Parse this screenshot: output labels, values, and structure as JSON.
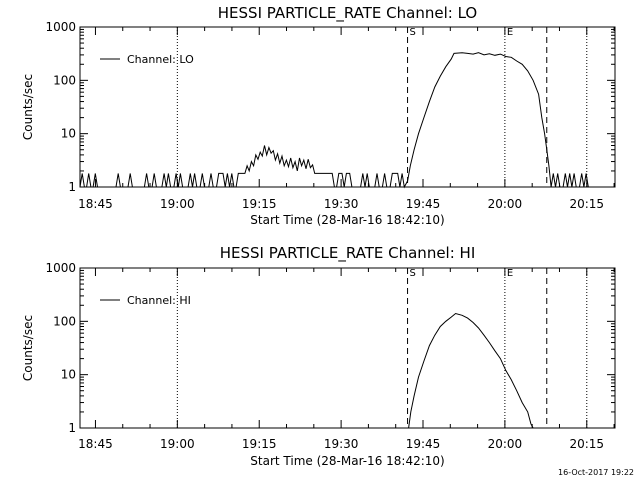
{
  "footer": {
    "date_stamp": "16-Oct-2017 19:22"
  },
  "chart_data": [
    {
      "type": "line",
      "title": "HESSI PARTICLE_RATE Channel: LO",
      "xlabel": "Start Time (28-Mar-16 18:42:10)",
      "ylabel": "Counts/sec",
      "x_unit": "minutes since 18:42:10",
      "xlim": [
        0,
        98
      ],
      "ylim": [
        1,
        1000
      ],
      "y_scale": "log",
      "x_ticks": [
        {
          "v": 2.83,
          "label": "18:45"
        },
        {
          "v": 17.83,
          "label": "19:00"
        },
        {
          "v": 32.83,
          "label": "19:15"
        },
        {
          "v": 47.83,
          "label": "19:30"
        },
        {
          "v": 62.83,
          "label": "19:45"
        },
        {
          "v": 77.83,
          "label": "20:00"
        },
        {
          "v": 92.83,
          "label": "20:15"
        }
      ],
      "y_ticks": [
        {
          "v": 1,
          "label": "1"
        },
        {
          "v": 10,
          "label": "10"
        },
        {
          "v": 100,
          "label": "100"
        },
        {
          "v": 1000,
          "label": "1000"
        }
      ],
      "markers": [
        {
          "x": 60.0,
          "style": "dashed",
          "label": "S"
        },
        {
          "x": 77.83,
          "style": "dotted",
          "label": "E"
        },
        {
          "x": 17.83,
          "style": "dotted",
          "label": ""
        },
        {
          "x": 92.83,
          "style": "dotted",
          "label": ""
        },
        {
          "x": 85.5,
          "style": "dashed",
          "label": ""
        }
      ],
      "legend": {
        "position": "top-left",
        "entries": [
          "Channel: LO"
        ]
      },
      "series": [
        {
          "name": "Channel: LO",
          "points": [
            [
              0,
              1
            ],
            [
              0.4,
              1.8
            ],
            [
              0.8,
              1
            ],
            [
              1.2,
              1
            ],
            [
              1.6,
              1.8
            ],
            [
              2,
              1
            ],
            [
              2.4,
              1
            ],
            [
              2.8,
              1.8
            ],
            [
              3.2,
              1
            ],
            [
              4,
              1
            ],
            [
              4.4,
              1
            ],
            [
              6.6,
              1
            ],
            [
              7,
              1.8
            ],
            [
              7.4,
              1
            ],
            [
              8.8,
              1
            ],
            [
              9.2,
              1.8
            ],
            [
              9.6,
              1
            ],
            [
              11.8,
              1
            ],
            [
              12.2,
              1.8
            ],
            [
              12.6,
              1
            ],
            [
              13.2,
              1
            ],
            [
              13.6,
              1.8
            ],
            [
              14,
              1
            ],
            [
              15,
              1
            ],
            [
              15.4,
              1.8
            ],
            [
              15.8,
              1
            ],
            [
              16.2,
              1.8
            ],
            [
              16.6,
              1
            ],
            [
              17.2,
              1
            ],
            [
              17.6,
              1.8
            ],
            [
              18,
              1
            ],
            [
              18.4,
              1.8
            ],
            [
              18.8,
              1
            ],
            [
              19.8,
              1
            ],
            [
              20.2,
              1.8
            ],
            [
              20.6,
              1
            ],
            [
              21,
              1.8
            ],
            [
              21.4,
              1
            ],
            [
              22,
              1
            ],
            [
              22.4,
              1.8
            ],
            [
              22.8,
              1
            ],
            [
              23.6,
              1
            ],
            [
              24,
              1.8
            ],
            [
              24.4,
              1
            ],
            [
              25,
              1
            ],
            [
              25.4,
              1.8
            ],
            [
              25.8,
              1.8
            ],
            [
              26.2,
              1.8
            ],
            [
              26.6,
              1
            ],
            [
              27,
              1.8
            ],
            [
              27.4,
              1
            ],
            [
              27.8,
              1.8
            ],
            [
              28.2,
              1
            ],
            [
              28.6,
              1
            ],
            [
              29,
              1.8
            ],
            [
              30.2,
              1.8
            ],
            [
              30.6,
              2.5
            ],
            [
              31,
              2
            ],
            [
              31.4,
              3
            ],
            [
              31.8,
              2.5
            ],
            [
              32.2,
              4
            ],
            [
              32.6,
              3.3
            ],
            [
              33,
              4.5
            ],
            [
              33.4,
              3.8
            ],
            [
              33.8,
              6
            ],
            [
              34.2,
              4
            ],
            [
              34.6,
              5.5
            ],
            [
              35,
              4.3
            ],
            [
              35.4,
              4.8
            ],
            [
              35.8,
              3.2
            ],
            [
              36.2,
              4.2
            ],
            [
              36.6,
              2.8
            ],
            [
              37,
              3.8
            ],
            [
              37.4,
              2.5
            ],
            [
              37.8,
              3.2
            ],
            [
              38.2,
              2.4
            ],
            [
              38.6,
              3.5
            ],
            [
              39,
              2.3
            ],
            [
              39.4,
              3
            ],
            [
              39.8,
              2
            ],
            [
              40.2,
              3.5
            ],
            [
              40.6,
              2.5
            ],
            [
              41,
              3.2
            ],
            [
              41.4,
              2.2
            ],
            [
              41.8,
              3.3
            ],
            [
              42.2,
              2.3
            ],
            [
              42.6,
              2.6
            ],
            [
              43,
              1.8
            ],
            [
              46.2,
              1.8
            ],
            [
              46.6,
              1
            ],
            [
              47,
              1
            ],
            [
              47.4,
              1.8
            ],
            [
              48,
              1.8
            ],
            [
              48.4,
              1
            ],
            [
              48.8,
              1.8
            ],
            [
              49.4,
              1.8
            ],
            [
              49.8,
              1
            ],
            [
              50.2,
              1
            ],
            [
              51.4,
              1
            ],
            [
              51.8,
              1.8
            ],
            [
              52.2,
              1
            ],
            [
              52.6,
              1.8
            ],
            [
              53,
              1
            ],
            [
              54,
              1
            ],
            [
              54.4,
              1.8
            ],
            [
              54.8,
              1
            ],
            [
              55.4,
              1
            ],
            [
              55.8,
              1.8
            ],
            [
              56.2,
              1
            ],
            [
              56.8,
              1
            ],
            [
              57.2,
              1.8
            ],
            [
              58.2,
              1.8
            ],
            [
              58.6,
              1
            ],
            [
              59,
              1.8
            ],
            [
              59.4,
              1
            ],
            [
              60,
              1.3
            ],
            [
              60.5,
              2.5
            ],
            [
              61.2,
              5
            ],
            [
              62,
              10
            ],
            [
              63,
              20
            ],
            [
              64,
              40
            ],
            [
              65,
              75
            ],
            [
              66,
              120
            ],
            [
              67,
              180
            ],
            [
              68,
              250
            ],
            [
              68.5,
              320
            ],
            [
              70,
              330
            ],
            [
              71,
              320
            ],
            [
              72,
              310
            ],
            [
              73,
              330
            ],
            [
              74,
              300
            ],
            [
              75,
              315
            ],
            [
              76,
              295
            ],
            [
              77,
              310
            ],
            [
              78,
              280
            ],
            [
              79,
              270
            ],
            [
              80,
              230
            ],
            [
              81,
              200
            ],
            [
              82,
              150
            ],
            [
              83,
              100
            ],
            [
              84,
              55
            ],
            [
              84.6,
              20
            ],
            [
              85.1,
              10
            ],
            [
              85.5,
              5
            ],
            [
              85.9,
              2.5
            ],
            [
              86.3,
              1
            ],
            [
              86.7,
              1.8
            ],
            [
              87.1,
              1
            ],
            [
              87.5,
              1.8
            ],
            [
              87.9,
              1
            ],
            [
              88.5,
              1
            ],
            [
              88.9,
              1.8
            ],
            [
              89.3,
              1
            ],
            [
              89.7,
              1.8
            ],
            [
              90.1,
              1
            ],
            [
              90.5,
              1.8
            ],
            [
              90.9,
              1
            ],
            [
              91.5,
              1
            ],
            [
              91.9,
              1.8
            ],
            [
              92.3,
              1
            ],
            [
              92.7,
              1.8
            ],
            [
              93.1,
              1
            ]
          ]
        }
      ]
    },
    {
      "type": "line",
      "title": "HESSI PARTICLE_RATE Channel: HI",
      "xlabel": "Start Time (28-Mar-16 18:42:10)",
      "ylabel": "Counts/sec",
      "x_unit": "minutes since 18:42:10",
      "xlim": [
        0,
        98
      ],
      "ylim": [
        1,
        1000
      ],
      "y_scale": "log",
      "x_ticks": [
        {
          "v": 2.83,
          "label": "18:45"
        },
        {
          "v": 17.83,
          "label": "19:00"
        },
        {
          "v": 32.83,
          "label": "19:15"
        },
        {
          "v": 47.83,
          "label": "19:30"
        },
        {
          "v": 62.83,
          "label": "19:45"
        },
        {
          "v": 77.83,
          "label": "20:00"
        },
        {
          "v": 92.83,
          "label": "20:15"
        }
      ],
      "y_ticks": [
        {
          "v": 1,
          "label": "1"
        },
        {
          "v": 10,
          "label": "10"
        },
        {
          "v": 100,
          "label": "100"
        },
        {
          "v": 1000,
          "label": "1000"
        }
      ],
      "markers": [
        {
          "x": 60.0,
          "style": "dashed",
          "label": "S"
        },
        {
          "x": 77.83,
          "style": "dotted",
          "label": "E"
        },
        {
          "x": 17.83,
          "style": "dotted",
          "label": ""
        },
        {
          "x": 92.83,
          "style": "dotted",
          "label": ""
        },
        {
          "x": 85.5,
          "style": "dashed",
          "label": ""
        }
      ],
      "legend": {
        "position": "top-left",
        "entries": [
          "Channel: HI"
        ]
      },
      "series": [
        {
          "name": "Channel: HI",
          "points": [
            [
              60.2,
              1
            ],
            [
              60.6,
              2
            ],
            [
              61.2,
              4
            ],
            [
              62,
              9
            ],
            [
              63,
              18
            ],
            [
              64,
              35
            ],
            [
              65,
              55
            ],
            [
              66,
              80
            ],
            [
              67,
              100
            ],
            [
              68,
              120
            ],
            [
              68.8,
              140
            ],
            [
              70,
              130
            ],
            [
              71,
              115
            ],
            [
              72,
              95
            ],
            [
              73,
              75
            ],
            [
              74,
              55
            ],
            [
              75,
              40
            ],
            [
              76,
              28
            ],
            [
              77,
              20
            ],
            [
              78,
              12
            ],
            [
              79,
              8
            ],
            [
              80,
              5
            ],
            [
              81,
              3
            ],
            [
              82,
              2
            ],
            [
              82.6,
              1.2
            ],
            [
              83,
              1
            ]
          ]
        }
      ]
    }
  ]
}
